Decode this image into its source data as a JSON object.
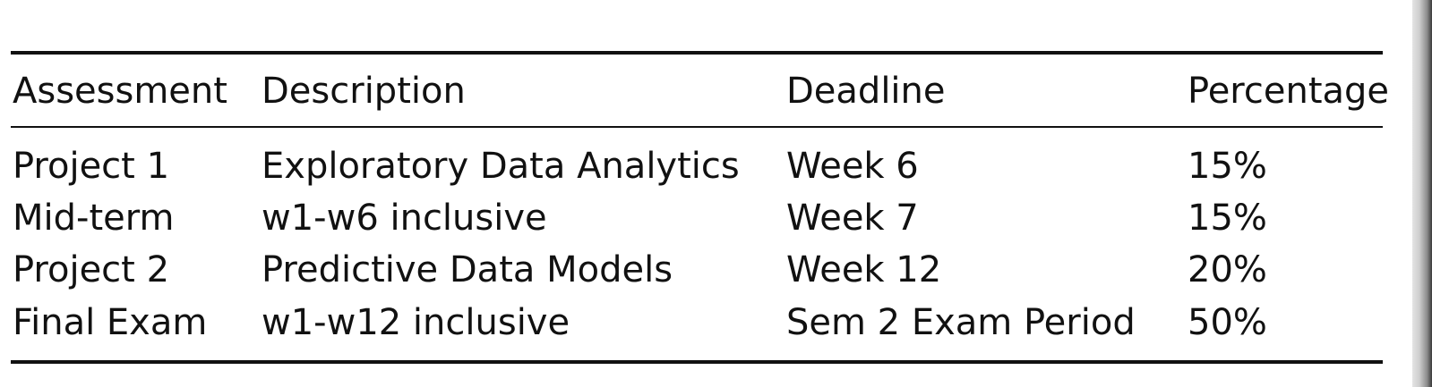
{
  "table": {
    "headers": [
      "Assessment",
      "Description",
      "Deadline",
      "Percentage"
    ],
    "rows": [
      [
        "Project 1",
        "Exploratory Data Analytics",
        "Week 6",
        "15%"
      ],
      [
        "Mid-term",
        "w1-w6 inclusive",
        "Week 7",
        "15%"
      ],
      [
        "Project 2",
        "Predictive Data Models",
        "Week 12",
        "20%"
      ],
      [
        "Final Exam",
        "w1-w12 inclusive",
        "Sem 2 Exam Period",
        "50%"
      ]
    ]
  }
}
